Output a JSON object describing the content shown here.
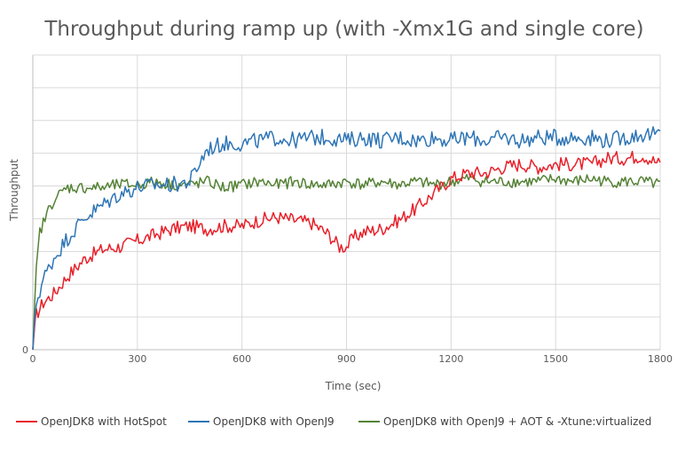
{
  "chart_data": {
    "type": "line",
    "title": "Throughput during ramp up (with -Xmx1G and single core)",
    "xlabel": "Time (sec)",
    "ylabel": "Throughput",
    "xlim": [
      0,
      1800
    ],
    "ylim": [
      0,
      100
    ],
    "x_ticks": [
      0,
      300,
      600,
      900,
      1200,
      1500,
      1800
    ],
    "x_tick_labels": [
      "0",
      "300",
      "600",
      "900",
      "1200",
      "1500",
      "1800"
    ],
    "y_tick_labels": [
      "0"
    ],
    "grid": true,
    "legend_position": "bottom",
    "series": [
      {
        "name": "OpenJDK8 with HotSpot",
        "color": "#e8202a",
        "x": [
          0,
          10,
          30,
          60,
          100,
          150,
          200,
          250,
          300,
          350,
          400,
          450,
          500,
          550,
          600,
          650,
          700,
          750,
          800,
          850,
          880,
          900,
          920,
          950,
          1000,
          1050,
          1100,
          1150,
          1200,
          1250,
          1300,
          1350,
          1400,
          1450,
          1500,
          1550,
          1600,
          1650,
          1700,
          1750,
          1800
        ],
        "y": [
          0,
          12,
          16,
          19,
          25,
          31,
          34,
          35,
          37,
          39,
          41,
          42,
          41,
          42,
          42,
          44,
          45,
          44,
          43,
          39,
          35,
          35,
          38,
          40,
          41,
          44,
          48,
          53,
          58,
          60,
          60,
          62,
          63,
          62,
          63,
          63,
          63,
          65,
          65,
          66,
          63
        ]
      },
      {
        "name": "OpenJDK8 with OpenJ9",
        "color": "#2e75b6",
        "x": [
          0,
          10,
          30,
          60,
          100,
          150,
          200,
          250,
          300,
          350,
          400,
          450,
          500,
          550,
          600,
          650,
          700,
          750,
          800,
          850,
          900,
          950,
          1000,
          1050,
          1100,
          1150,
          1200,
          1250,
          1300,
          1350,
          1400,
          1450,
          1500,
          1550,
          1600,
          1650,
          1700,
          1750,
          1800
        ],
        "y": [
          0,
          16,
          24,
          31,
          38,
          45,
          49,
          53,
          55,
          56,
          56,
          57,
          68,
          70,
          70,
          71,
          72,
          71,
          72,
          72,
          71,
          72,
          71,
          72,
          71,
          72,
          71,
          72,
          71,
          72,
          71,
          72,
          72,
          72,
          72,
          71,
          72,
          73,
          73
        ]
      },
      {
        "name": "OpenJDK8 with OpenJ9 + AOT & -Xtune:virtualized",
        "color": "#548235",
        "x": [
          0,
          10,
          20,
          40,
          60,
          100,
          150,
          200,
          250,
          300,
          350,
          400,
          450,
          500,
          550,
          600,
          650,
          700,
          750,
          800,
          850,
          900,
          950,
          1000,
          1050,
          1100,
          1150,
          1200,
          1250,
          1300,
          1350,
          1400,
          1450,
          1500,
          1550,
          1600,
          1650,
          1700,
          1750,
          1800
        ],
        "y": [
          0,
          27,
          40,
          46,
          51,
          55,
          55,
          55,
          56,
          56,
          57,
          56,
          56,
          57,
          55,
          56,
          57,
          56,
          57,
          56,
          56,
          57,
          56,
          57,
          56,
          57,
          56,
          57,
          58,
          57,
          57,
          57,
          57,
          58,
          57,
          58,
          57,
          57,
          57,
          56
        ]
      }
    ]
  }
}
